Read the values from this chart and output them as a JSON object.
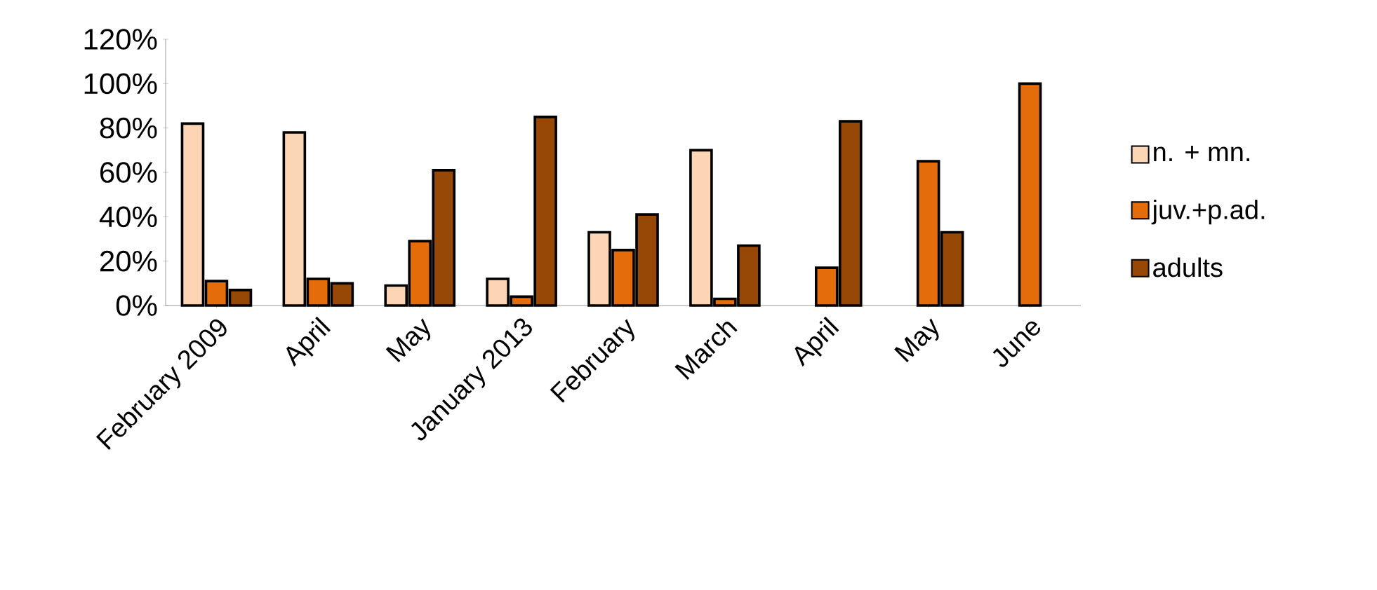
{
  "chart_data": {
    "type": "bar",
    "categories": [
      "February 2009",
      "April",
      "May",
      "January 2013",
      "February",
      "March",
      "April",
      "May",
      "June"
    ],
    "series": [
      {
        "name": "n. + mn.",
        "color": "#fcd5b4",
        "values": [
          82,
          78,
          9,
          12,
          33,
          70,
          null,
          null,
          null
        ]
      },
      {
        "name": "juv.+p.ad.",
        "color": "#e46c0a",
        "values": [
          11,
          12,
          29,
          4,
          25,
          3,
          17,
          65,
          100
        ]
      },
      {
        "name": "adults",
        "color": "#974806",
        "values": [
          7,
          10,
          61,
          85,
          41,
          27,
          83,
          33,
          null
        ]
      }
    ],
    "ylim": [
      0,
      120
    ],
    "yticks": [
      {
        "value": 0,
        "label": "0%"
      },
      {
        "value": 20,
        "label": "20%"
      },
      {
        "value": 40,
        "label": "40%"
      },
      {
        "value": 60,
        "label": "60%"
      },
      {
        "value": 80,
        "label": "80%"
      },
      {
        "value": 100,
        "label": "100%"
      },
      {
        "value": 120,
        "label": "120%"
      }
    ],
    "legend": "right",
    "grid": false
  }
}
